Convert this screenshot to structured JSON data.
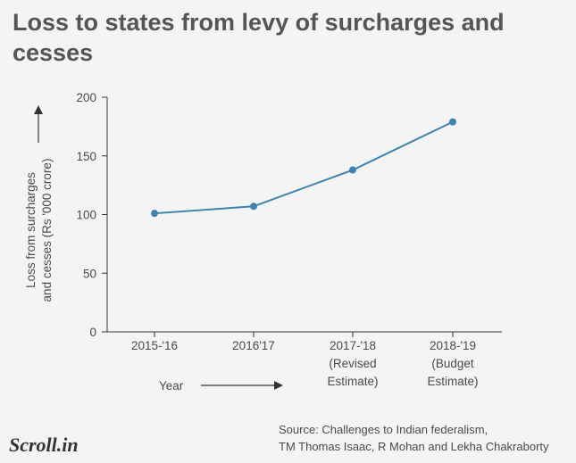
{
  "title": "Loss to states from levy of surcharges and cesses",
  "source_line1": "Source:  Challenges to Indian federalism,",
  "source_line2": "TM Thomas Isaac, R Mohan and Lekha Chakraborty",
  "logo": "Scroll.in",
  "colors": {
    "line": "#3d82b0",
    "axis": "#333333",
    "text": "#4a4a4a",
    "background": "#f4f4f4"
  },
  "chart_data": {
    "type": "line",
    "title": "Loss to states from levy of surcharges and cesses",
    "xlabel": "Year",
    "ylabel_lines": [
      "Loss from surcharges",
      "and cesses (Rs '000 crore)"
    ],
    "categories": [
      [
        "2015-'16"
      ],
      [
        "2016'17"
      ],
      [
        "2017-'18",
        "(Revised",
        "Estimate)"
      ],
      [
        "2018-'19",
        "(Budget",
        "Estimate)"
      ]
    ],
    "values": [
      101,
      107,
      138,
      179
    ],
    "ylim": [
      0,
      200
    ],
    "yticks": [
      0,
      50,
      100,
      150,
      200
    ],
    "grid": false,
    "legend": "none"
  }
}
